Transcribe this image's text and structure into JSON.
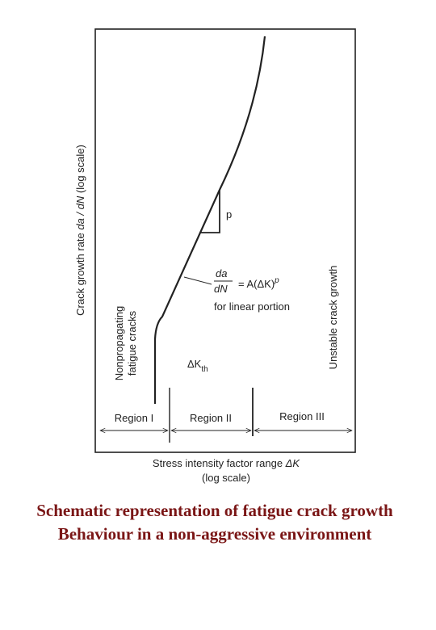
{
  "figure": {
    "y_axis_label": {
      "before": "Crack growth rate ",
      "italic": "da / dN",
      "after": " (log scale)"
    },
    "x_axis_label": {
      "line1": "Stress intensity factor range ",
      "symbol": "ΔK",
      "line2": "(log scale)"
    },
    "slope_label": "p",
    "equation": {
      "numerator": "da",
      "denominator": "dN",
      "rhs": "= A(ΔK)",
      "exponent": "p",
      "note": "for linear portion"
    },
    "threshold": {
      "symbol": "ΔK",
      "subscript": "th"
    },
    "left_note": [
      "Nonpropagating",
      "fatigue cracks"
    ],
    "right_note": "Unstable crack growth",
    "regions": [
      "Region I",
      "Region II",
      "Region III"
    ]
  },
  "caption": [
    "Schematic representation of fatigue crack growth",
    "Behaviour in a non-aggressive environment"
  ]
}
